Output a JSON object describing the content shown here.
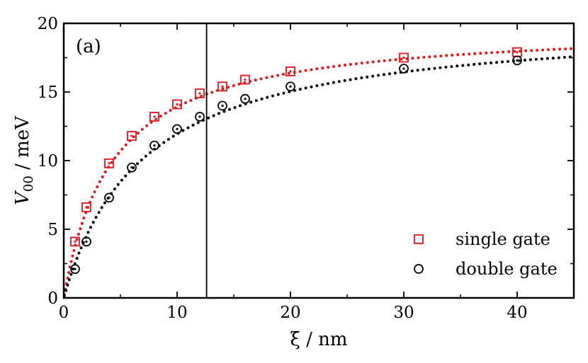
{
  "chart_data": {
    "type": "scatter",
    "panel_label": "(a)",
    "xlabel": "ξ / nm",
    "ylabel_main": "V",
    "ylabel_sub": "00",
    "ylabel_unit": " / meV",
    "xlim": [
      0,
      45
    ],
    "ylim": [
      0,
      20
    ],
    "xticks": [
      0,
      10,
      20,
      30,
      40
    ],
    "yticks": [
      0,
      5,
      10,
      15,
      20
    ],
    "xtick_labels": [
      "0",
      "10",
      "20",
      "30",
      "40"
    ],
    "ytick_labels": [
      "0",
      "5",
      "10",
      "15",
      "20"
    ],
    "vertical_line_x": 12.6,
    "legend_position": "bottom-right",
    "grid": false,
    "series": [
      {
        "name": "single gate",
        "marker": "square",
        "color": "#e8141c",
        "x": [
          1,
          2,
          4,
          6,
          8,
          10,
          12,
          14,
          16,
          20,
          30,
          40
        ],
        "y": [
          4.1,
          6.6,
          9.8,
          11.8,
          13.2,
          14.1,
          14.9,
          15.4,
          15.9,
          16.5,
          17.5,
          17.9
        ],
        "fit": {
          "a": 19.9,
          "b": 4.3
        }
      },
      {
        "name": "double gate",
        "marker": "circle",
        "color": "#000000",
        "x": [
          1,
          2,
          4,
          6,
          8,
          10,
          12,
          14,
          16,
          20,
          30,
          40
        ],
        "y": [
          2.1,
          4.1,
          7.3,
          9.5,
          11.1,
          12.3,
          13.2,
          14.0,
          14.5,
          15.4,
          16.7,
          17.3
        ],
        "fit": {
          "a": 20.3,
          "b": 7.0
        }
      }
    ]
  }
}
